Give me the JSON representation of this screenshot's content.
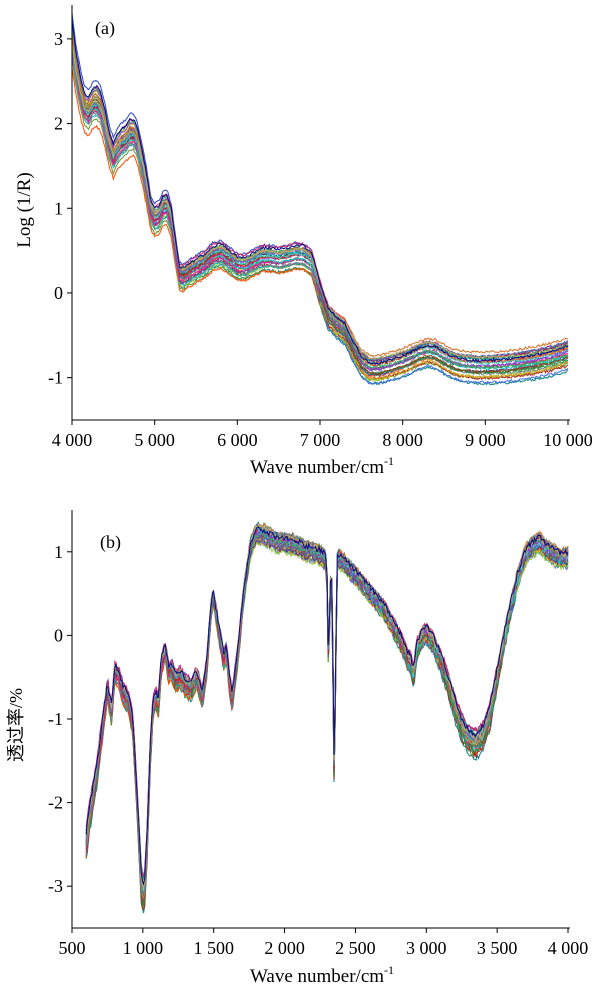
{
  "chart_data": [
    {
      "panel_label": "(a)",
      "type": "line",
      "xlabel": "Wave number/cm",
      "xlabel_sup": "-1",
      "ylabel": "Log (1/R)",
      "xlim": [
        4000,
        10000
      ],
      "ylim": [
        -1.5,
        3.4
      ],
      "xticks": [
        4000,
        5000,
        6000,
        7000,
        8000,
        9000,
        10000
      ],
      "xtick_labels": [
        "4 000",
        "5 000",
        "6 000",
        "7 000",
        "8 000",
        "9 000",
        "10 000"
      ],
      "yticks": [
        -1,
        0,
        1,
        2,
        3
      ],
      "ytick_labels": [
        "-1",
        "0",
        "1",
        "2",
        "3"
      ],
      "grid": false,
      "legend": "none",
      "series_count": 32,
      "base_curve": {
        "x": [
          4000,
          4050,
          4100,
          4150,
          4200,
          4250,
          4300,
          4350,
          4400,
          4450,
          4500,
          4550,
          4600,
          4650,
          4700,
          4750,
          4800,
          4850,
          4900,
          4950,
          5000,
          5050,
          5100,
          5150,
          5200,
          5250,
          5300,
          5350,
          5400,
          5500,
          5600,
          5700,
          5800,
          5900,
          6000,
          6100,
          6200,
          6300,
          6400,
          6500,
          6600,
          6700,
          6800,
          6900,
          7000,
          7100,
          7200,
          7300,
          7400,
          7500,
          7600,
          7700,
          7800,
          7900,
          8000,
          8100,
          8200,
          8300,
          8400,
          8500,
          8600,
          8700,
          8800,
          8900,
          9000,
          9200,
          9400,
          9600,
          9800,
          10000
        ],
        "y": [
          2.95,
          2.6,
          2.35,
          2.15,
          2.1,
          2.2,
          2.22,
          2.15,
          1.95,
          1.72,
          1.58,
          1.68,
          1.75,
          1.78,
          1.85,
          1.85,
          1.72,
          1.5,
          1.25,
          0.95,
          0.85,
          0.88,
          0.98,
          1.0,
          0.85,
          0.5,
          0.2,
          0.18,
          0.22,
          0.28,
          0.33,
          0.42,
          0.45,
          0.38,
          0.3,
          0.3,
          0.35,
          0.4,
          0.4,
          0.38,
          0.4,
          0.43,
          0.42,
          0.35,
          0.0,
          -0.28,
          -0.38,
          -0.45,
          -0.65,
          -0.82,
          -0.9,
          -0.9,
          -0.88,
          -0.85,
          -0.82,
          -0.78,
          -0.73,
          -0.7,
          -0.72,
          -0.78,
          -0.83,
          -0.86,
          -0.87,
          -0.88,
          -0.88,
          -0.87,
          -0.85,
          -0.82,
          -0.78,
          -0.72
        ]
      }
    },
    {
      "panel_label": "(b)",
      "type": "line",
      "xlabel": "Wave number/cm",
      "xlabel_sup": "-1",
      "ylabel": "透过率/%",
      "xlim": [
        500,
        4000
      ],
      "ylim": [
        -3.5,
        1.5
      ],
      "xticks": [
        500,
        1000,
        1500,
        2000,
        2500,
        3000,
        3500,
        4000
      ],
      "xtick_labels": [
        "500",
        "1 000",
        "1 500",
        "2 000",
        "2 500",
        "3 000",
        "3 500",
        "4 000"
      ],
      "yticks": [
        -3,
        -2,
        -1,
        0,
        1
      ],
      "ytick_labels": [
        "-3",
        "-2",
        "-1",
        "0",
        "1"
      ],
      "grid": false,
      "legend": "none",
      "series_count": 32,
      "base_curve": {
        "x": [
          600,
          620,
          650,
          680,
          700,
          720,
          750,
          780,
          800,
          830,
          860,
          900,
          930,
          960,
          990,
          1010,
          1030,
          1050,
          1070,
          1090,
          1110,
          1130,
          1160,
          1180,
          1200,
          1230,
          1260,
          1300,
          1340,
          1380,
          1420,
          1450,
          1480,
          1500,
          1520,
          1550,
          1570,
          1590,
          1610,
          1630,
          1650,
          1680,
          1700,
          1730,
          1760,
          1800,
          1850,
          1900,
          1950,
          2000,
          2050,
          2100,
          2150,
          2200,
          2250,
          2290,
          2300,
          2310,
          2320,
          2330,
          2340,
          2350,
          2360,
          2370,
          2380,
          2400,
          2450,
          2500,
          2550,
          2600,
          2650,
          2700,
          2750,
          2800,
          2850,
          2870,
          2890,
          2910,
          2930,
          2950,
          2980,
          3000,
          3050,
          3100,
          3150,
          3200,
          3250,
          3300,
          3350,
          3400,
          3450,
          3500,
          3550,
          3600,
          3650,
          3700,
          3750,
          3800,
          3850,
          3900,
          3950,
          4000
        ],
        "y": [
          -2.5,
          -2.2,
          -1.9,
          -1.6,
          -1.3,
          -1.05,
          -0.65,
          -0.95,
          -0.45,
          -0.5,
          -0.7,
          -0.8,
          -1.1,
          -2.0,
          -3.0,
          -3.1,
          -2.5,
          -1.5,
          -0.9,
          -0.75,
          -0.85,
          -0.35,
          -0.2,
          -0.45,
          -0.4,
          -0.55,
          -0.5,
          -0.6,
          -0.65,
          -0.5,
          -0.75,
          -0.4,
          0.3,
          0.45,
          0.2,
          -0.1,
          -0.3,
          -0.2,
          -0.55,
          -0.8,
          -0.5,
          -0.1,
          0.3,
          0.7,
          1.05,
          1.2,
          1.2,
          1.15,
          1.1,
          1.1,
          1.08,
          1.05,
          1.0,
          0.98,
          0.95,
          0.9,
          0.6,
          -0.4,
          0.4,
          0.8,
          -0.2,
          -1.8,
          -0.5,
          0.85,
          0.9,
          0.88,
          0.8,
          0.7,
          0.6,
          0.5,
          0.4,
          0.3,
          0.15,
          0.0,
          -0.2,
          -0.3,
          -0.35,
          -0.5,
          -0.2,
          -0.1,
          0.0,
          0.02,
          -0.1,
          -0.3,
          -0.55,
          -0.85,
          -1.1,
          -1.25,
          -1.3,
          -1.2,
          -0.95,
          -0.5,
          -0.05,
          0.35,
          0.7,
          0.95,
          1.05,
          1.1,
          1.0,
          0.95,
          0.9,
          0.92
        ]
      }
    }
  ],
  "palette": [
    "#1a1a1a",
    "#00a0c0",
    "#c8c400",
    "#8b1a8b",
    "#2e8b57",
    "#d2691e",
    "#1f3fbf",
    "#cc2266",
    "#008080",
    "#6b8e23",
    "#ff4500",
    "#4169e1",
    "#9acd32",
    "#b22222",
    "#20b2aa",
    "#708090",
    "#daa520",
    "#483d8b",
    "#228b22",
    "#ff1493",
    "#00ced1",
    "#8b4513",
    "#6a5acd",
    "#556b2f",
    "#dc143c",
    "#40e0d0",
    "#9932cc",
    "#3cb371",
    "#cd853f",
    "#4682b4",
    "#bdb76b",
    "#000080"
  ]
}
